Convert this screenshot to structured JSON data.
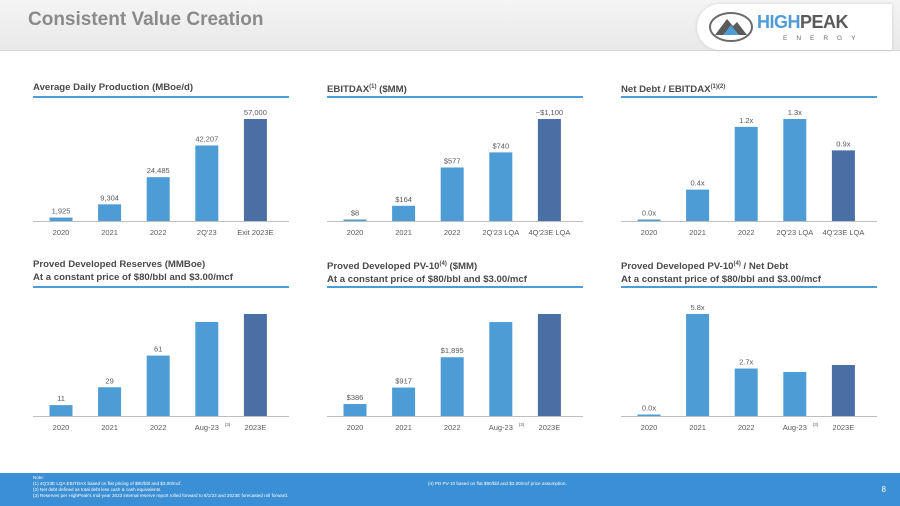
{
  "slide": {
    "title": "Consistent Value Creation",
    "page_number": "8"
  },
  "logo": {
    "word1": "HIGH",
    "word2": "PEAK",
    "sub": "ENERGY"
  },
  "colors": {
    "bar": "#4d9cd6",
    "bar_last": "#4a6fa5",
    "rule": "#4d9cd6",
    "footer": "#3b8fd4"
  },
  "panels": [
    {
      "title_html": "Average Daily Production (MBoe/d)"
    },
    {
      "title_html": "EBITDAX<sup>(1)</sup> ($MM)"
    },
    {
      "title_html": "Net Debt / EBITDAX<sup>(1)(2)</sup>"
    },
    {
      "title_html": "Proved Developed Reserves (MMBoe)<br>At a constant price of $80/bbl and $3.00/mcf"
    },
    {
      "title_html": "Proved Developed PV-10<sup>(4)</sup> ($MM)<br>At a constant price of $80/bbl and $3.00/mcf"
    },
    {
      "title_html": "Proved Developed PV-10<sup>(4)</sup> / Net Debt<br>At a constant price of $80/bbl and $3.00/mcf"
    }
  ],
  "chart_data": [
    {
      "type": "bar",
      "title": "Average Daily Production (MBoe/d)",
      "categories": [
        "2020",
        "2021",
        "2022",
        "2Q'23",
        "Exit 2023E"
      ],
      "values": [
        1925,
        9304,
        24485,
        42207,
        57000
      ],
      "labels": [
        "1,925",
        "9,304",
        "24,485",
        "42,207",
        "57,000"
      ],
      "ylim": [
        0,
        57000
      ]
    },
    {
      "type": "bar",
      "title": "EBITDAX (1) ($MM)",
      "categories": [
        "2020",
        "2021",
        "2022",
        "2Q'23 LQA",
        "4Q'23E LQA"
      ],
      "values": [
        8,
        164,
        577,
        740,
        1100
      ],
      "labels": [
        "$8",
        "$164",
        "$577",
        "$740",
        "~$1,100"
      ],
      "ylim": [
        0,
        1100
      ]
    },
    {
      "type": "bar",
      "title": "Net Debt / EBITDAX (1)(2)",
      "categories": [
        "2020",
        "2021",
        "2022",
        "2Q'23 LQA",
        "4Q'23E LQA"
      ],
      "values": [
        0.0,
        0.4,
        1.2,
        1.3,
        0.9
      ],
      "labels": [
        "0.0x",
        "0.4x",
        "1.2x",
        "1.3x",
        "0.9x"
      ],
      "ylim": [
        0,
        1.3
      ]
    },
    {
      "type": "bar",
      "title": "Proved Developed Reserves (MMBoe)",
      "categories": [
        "2020",
        "2021",
        "2022",
        "Aug-23",
        "2023E"
      ],
      "category_sups": [
        "",
        "",
        "",
        "(3)",
        ""
      ],
      "values": [
        11,
        29,
        61,
        95,
        103
      ],
      "labels": [
        "11",
        "29",
        "61",
        "",
        ""
      ],
      "ylim": [
        0,
        103
      ]
    },
    {
      "type": "bar",
      "title": "Proved Developed PV-10 (4) ($MM)",
      "categories": [
        "2020",
        "2021",
        "2022",
        "Aug-23",
        "2023E"
      ],
      "category_sups": [
        "",
        "",
        "",
        "(3)",
        ""
      ],
      "values": [
        386,
        917,
        1895,
        3030,
        3290
      ],
      "labels": [
        "$386",
        "$917",
        "$1,895",
        "",
        ""
      ],
      "ylim": [
        0,
        3290
      ]
    },
    {
      "type": "bar",
      "title": "Proved Developed PV-10 (4) / Net Debt",
      "categories": [
        "2020",
        "2021",
        "2022",
        "Aug-23",
        "2023E"
      ],
      "category_sups": [
        "",
        "",
        "",
        "(3)",
        ""
      ],
      "values": [
        0.0,
        5.8,
        2.7,
        2.5,
        2.9
      ],
      "labels": [
        "0.0x",
        "5.8x",
        "2.7x",
        "",
        ""
      ],
      "ylim": [
        0,
        5.8
      ]
    }
  ],
  "footer": {
    "notes_left": [
      "Note:",
      "(1)     4Q'23E LQA EBITDAX based on flat pricing of $80/bbl and $3.00/mcf.",
      "(2)     Net debt defined as total debt less cash & cash equivalents.",
      "(3)     Reserves per HighPeak's mid-year 2023 internal reserve report rolled forward to 8/1/23 and 2023E forecasted roll forward."
    ],
    "notes_right": [
      "(4)     PD PV-10 based on flat $80/bbl and $3.00/mcf price assumption."
    ]
  }
}
